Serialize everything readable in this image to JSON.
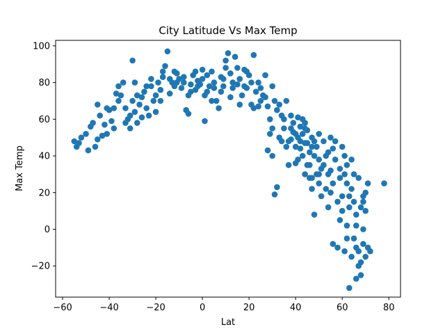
{
  "chart_data": {
    "type": "scatter",
    "title": "City Latitude Vs Max Temp",
    "xlabel": "Lat",
    "ylabel": "Max Temp",
    "xlim": [
      -63,
      85
    ],
    "ylim": [
      -37,
      103
    ],
    "xticks": [
      -60,
      -40,
      -20,
      0,
      20,
      40,
      60,
      80
    ],
    "yticks": [
      -20,
      0,
      20,
      40,
      60,
      80,
      100
    ],
    "xtick_labels": [
      "−60",
      "−40",
      "−20",
      "0",
      "20",
      "40",
      "60",
      "80"
    ],
    "ytick_labels": [
      "−20",
      "0",
      "20",
      "40",
      "60",
      "80",
      "100"
    ],
    "grid": false,
    "marker_color": "#1f77b4",
    "series": [
      {
        "points": [
          [
            -55,
            48
          ],
          [
            -54,
            45
          ],
          [
            -52,
            50
          ],
          [
            -50,
            52
          ],
          [
            -49,
            43
          ],
          [
            -47,
            58
          ],
          [
            -46,
            45
          ],
          [
            -45,
            49
          ],
          [
            -44,
            62
          ],
          [
            -42,
            57
          ],
          [
            -41,
            52
          ],
          [
            -40,
            65
          ],
          [
            -39,
            59
          ],
          [
            -38,
            66
          ],
          [
            -37,
            74
          ],
          [
            -36,
            78
          ],
          [
            -35,
            73
          ],
          [
            -34,
            80
          ],
          [
            -33,
            66
          ],
          [
            -32,
            60
          ],
          [
            -31,
            55
          ],
          [
            -30,
            70
          ],
          [
            -30,
            92
          ],
          [
            -29,
            64
          ],
          [
            -28,
            58
          ],
          [
            -27,
            68
          ],
          [
            -26,
            72
          ],
          [
            -25,
            75
          ],
          [
            -24,
            66
          ],
          [
            -23,
            62
          ],
          [
            -22,
            78
          ],
          [
            -21,
            70
          ],
          [
            -20,
            73
          ],
          [
            -19,
            80
          ],
          [
            -18,
            76
          ],
          [
            -17,
            86
          ],
          [
            -16,
            89
          ],
          [
            -15,
            97
          ],
          [
            -14,
            82
          ],
          [
            -13,
            80
          ],
          [
            -12,
            78
          ],
          [
            -11,
            85
          ],
          [
            -10,
            82
          ],
          [
            -9,
            77
          ],
          [
            -8,
            80
          ],
          [
            -7,
            65
          ],
          [
            -6,
            63
          ],
          [
            -5,
            79
          ],
          [
            -4,
            84
          ],
          [
            -3,
            76
          ],
          [
            -2,
            81
          ],
          [
            -1,
            79
          ],
          [
            0,
            82
          ],
          [
            0,
            87
          ],
          [
            1,
            59
          ],
          [
            2,
            75
          ],
          [
            3,
            78
          ],
          [
            4,
            86
          ],
          [
            5,
            80
          ],
          [
            6,
            70
          ],
          [
            7,
            66
          ],
          [
            8,
            83
          ],
          [
            9,
            78
          ],
          [
            10,
            88
          ],
          [
            10,
            92
          ],
          [
            11,
            96
          ],
          [
            12,
            85
          ],
          [
            13,
            80
          ],
          [
            14,
            94
          ],
          [
            15,
            79
          ],
          [
            16,
            82
          ],
          [
            17,
            73
          ],
          [
            18,
            87
          ],
          [
            19,
            77
          ],
          [
            20,
            84
          ],
          [
            21,
            80
          ],
          [
            22,
            95
          ],
          [
            23,
            75
          ],
          [
            24,
            67
          ],
          [
            25,
            70
          ],
          [
            26,
            73
          ],
          [
            27,
            84
          ],
          [
            28,
            67
          ],
          [
            29,
            60
          ],
          [
            30,
            78
          ],
          [
            30,
            55
          ],
          [
            31,
            19
          ],
          [
            32,
            23
          ],
          [
            33,
            68
          ],
          [
            34,
            48
          ],
          [
            35,
            55
          ],
          [
            36,
            45
          ],
          [
            37,
            35
          ],
          [
            38,
            62
          ],
          [
            38,
            49
          ],
          [
            39,
            58
          ],
          [
            40,
            52
          ],
          [
            40,
            45
          ],
          [
            41,
            61
          ],
          [
            41,
            38
          ],
          [
            42,
            56
          ],
          [
            42,
            48
          ],
          [
            43,
            52
          ],
          [
            43,
            40
          ],
          [
            44,
            58
          ],
          [
            44,
            30
          ],
          [
            45,
            47
          ],
          [
            45,
            35
          ],
          [
            46,
            42
          ],
          [
            46,
            28
          ],
          [
            47,
            50
          ],
          [
            47,
            22
          ],
          [
            48,
            8
          ],
          [
            48,
            40
          ],
          [
            49,
            30
          ],
          [
            49,
            45
          ],
          [
            50,
            25
          ],
          [
            50,
            52
          ],
          [
            51,
            18
          ],
          [
            52,
            35
          ],
          [
            52,
            48
          ],
          [
            53,
            22
          ],
          [
            54,
            30
          ],
          [
            54,
            42
          ],
          [
            55,
            20
          ],
          [
            55,
            50
          ],
          [
            56,
            25
          ],
          [
            56,
            -8
          ],
          [
            57,
            38
          ],
          [
            58,
            15
          ],
          [
            58,
            -10
          ],
          [
            59,
            5
          ],
          [
            59,
            33
          ],
          [
            60,
            18
          ],
          [
            60,
            45
          ],
          [
            61,
            30
          ],
          [
            61,
            -12
          ],
          [
            62,
            2
          ],
          [
            62,
            25
          ],
          [
            63,
            -32
          ],
          [
            63,
            12
          ],
          [
            64,
            22
          ],
          [
            64,
            38
          ],
          [
            65,
            -5
          ],
          [
            65,
            15
          ],
          [
            66,
            -27
          ],
          [
            66,
            8
          ],
          [
            67,
            28
          ],
          [
            67,
            -12
          ],
          [
            68,
            -18
          ],
          [
            68,
            12
          ],
          [
            69,
            -8
          ],
          [
            69,
            18
          ],
          [
            70,
            -15
          ],
          [
            70,
            10
          ],
          [
            71,
            25
          ],
          [
            72,
            -12
          ],
          [
            78,
            25
          ],
          [
            -53,
            47
          ],
          [
            -48,
            56
          ],
          [
            -43,
            51
          ],
          [
            -41,
            66
          ],
          [
            -36,
            70
          ],
          [
            -33,
            58
          ],
          [
            -31,
            62
          ],
          [
            -28,
            73
          ],
          [
            -24,
            78
          ],
          [
            -20,
            64
          ],
          [
            -17,
            83
          ],
          [
            -14,
            74
          ],
          [
            -11,
            80
          ],
          [
            -8,
            83
          ],
          [
            -5,
            75
          ],
          [
            -2,
            78
          ],
          [
            2,
            84
          ],
          [
            5,
            77
          ],
          [
            8,
            75
          ],
          [
            12,
            72
          ],
          [
            15,
            88
          ],
          [
            18,
            78
          ],
          [
            21,
            68
          ],
          [
            24,
            80
          ],
          [
            27,
            72
          ],
          [
            29,
            52
          ],
          [
            32,
            65
          ],
          [
            35,
            60
          ],
          [
            37,
            48
          ],
          [
            39,
            53
          ],
          [
            42,
            44
          ],
          [
            44,
            55
          ],
          [
            46,
            35
          ],
          [
            48,
            48
          ],
          [
            50,
            38
          ],
          [
            53,
            40
          ],
          [
            56,
            44
          ],
          [
            59,
            28
          ],
          [
            61,
            40
          ],
          [
            63,
            18
          ],
          [
            64,
            -15
          ],
          [
            66,
            2
          ],
          [
            68,
            -25
          ],
          [
            69,
            0
          ],
          [
            70,
            20
          ],
          [
            28,
            43
          ],
          [
            30,
            40
          ],
          [
            33,
            50
          ],
          [
            36,
            70
          ],
          [
            40,
            36
          ],
          [
            43,
            60
          ],
          [
            45,
            54
          ],
          [
            47,
            28
          ],
          [
            51,
            33
          ],
          [
            54,
            12
          ],
          [
            57,
            48
          ],
          [
            62,
            -5
          ],
          [
            65,
            30
          ],
          [
            67,
            -20
          ],
          [
            -45,
            68
          ],
          [
            -38,
            55
          ],
          [
            -29,
            80
          ],
          [
            -26,
            61
          ],
          [
            -22,
            82
          ],
          [
            -18,
            70
          ],
          [
            -12,
            86
          ],
          [
            -6,
            73
          ],
          [
            -3,
            86
          ],
          [
            1,
            73
          ],
          [
            4,
            70
          ],
          [
            9,
            82
          ],
          [
            13,
            77
          ],
          [
            16,
            68
          ],
          [
            19,
            86
          ],
          [
            22,
            66
          ],
          [
            25,
            77
          ],
          [
            31,
            70
          ],
          [
            34,
            62
          ],
          [
            38,
            55
          ],
          [
            41,
            50
          ],
          [
            44,
            47
          ],
          [
            47,
            45
          ],
          [
            50,
            30
          ],
          [
            55,
            32
          ],
          [
            60,
            10
          ],
          [
            62,
            35
          ],
          [
            66,
            -10
          ],
          [
            69,
            15
          ],
          [
            71,
            -10
          ]
        ]
      }
    ]
  }
}
